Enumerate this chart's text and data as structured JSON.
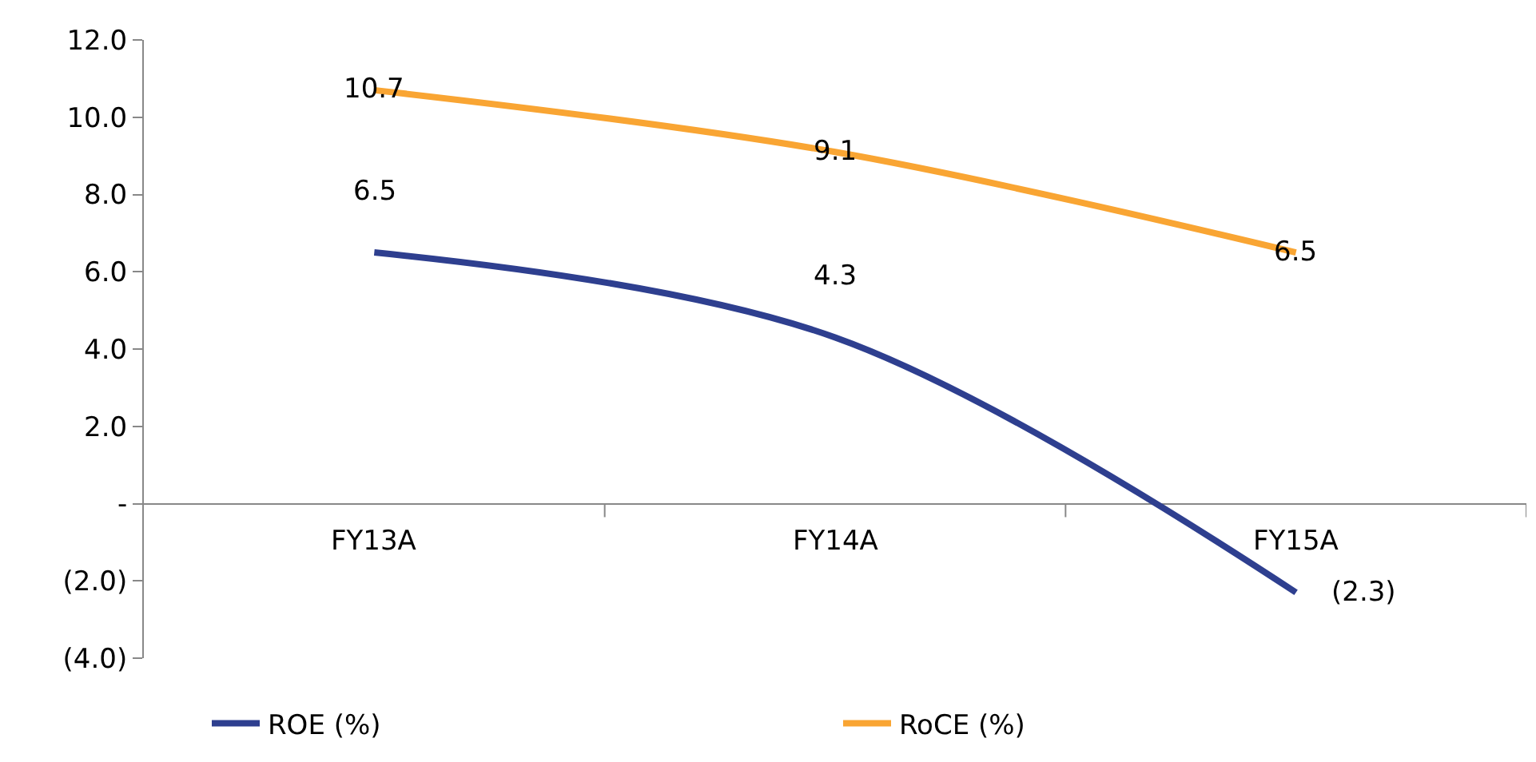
{
  "chart_data": {
    "type": "line",
    "categories": [
      "FY13A",
      "FY14A",
      "FY15A"
    ],
    "series": [
      {
        "name": "ROE (%)",
        "color": "#2e3f8f",
        "values": [
          6.5,
          4.3,
          -2.3
        ],
        "value_labels": [
          "6.5",
          "4.3",
          "(2.3)"
        ]
      },
      {
        "name": "RoCE (%)",
        "color": "#f9a533",
        "values": [
          10.7,
          9.1,
          6.5
        ],
        "value_labels": [
          "10.7",
          "9.1",
          "6.5"
        ]
      }
    ],
    "ylim": [
      -4,
      12
    ],
    "yticks": [
      {
        "value": -4,
        "label": "(4.0)"
      },
      {
        "value": -2,
        "label": "(2.0)"
      },
      {
        "value": 0,
        "label": "-"
      },
      {
        "value": 2,
        "label": "2.0"
      },
      {
        "value": 4,
        "label": "4.0"
      },
      {
        "value": 6,
        "label": "6.0"
      },
      {
        "value": 8,
        "label": "8.0"
      },
      {
        "value": 10,
        "label": "10.0"
      },
      {
        "value": 12,
        "label": "12.0"
      }
    ],
    "legend": "bottom",
    "marker": "none",
    "line_style": "solid"
  }
}
